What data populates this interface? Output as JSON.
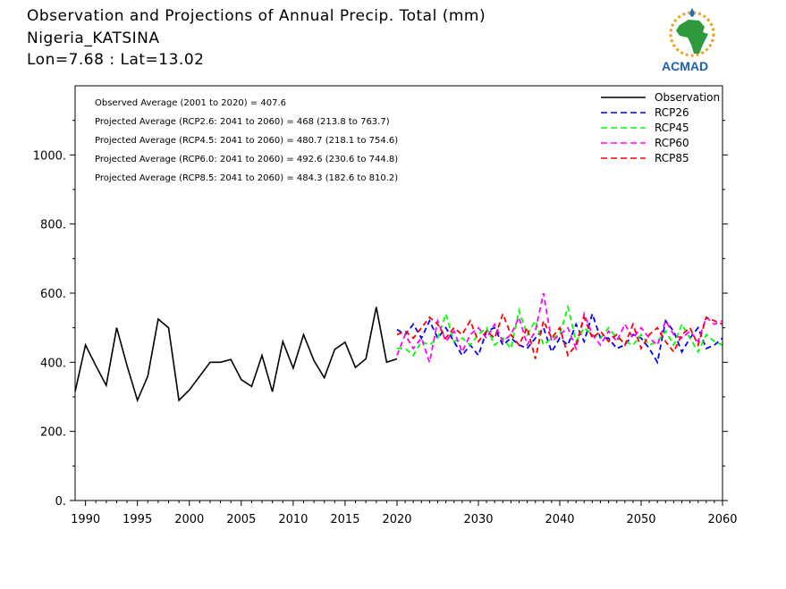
{
  "title": {
    "line1": "Observation and Projections of Annual Precip. Total (mm)",
    "line2": "Nigeria_KATSINA",
    "line3": "Lon=7.68 : Lat=13.02"
  },
  "logo": {
    "text": "ACMAD",
    "icon": "africa-map-logo"
  },
  "colors": {
    "observation": "#000000",
    "rcp26": "#0000ff",
    "rcp45": "#00ff00",
    "rcp60": "#ff00ff",
    "rcp85": "#ff0000"
  },
  "chart_data": {
    "type": "line",
    "title": "Observation and Projections of Annual Precip. Total (mm)",
    "xlim": [
      1989,
      2060
    ],
    "ylim": [
      0,
      1200
    ],
    "grid": false,
    "legend_position": "top-right",
    "x_ticks": [
      1990,
      1995,
      2000,
      2005,
      2010,
      2015,
      2020,
      2030,
      2040,
      2050,
      2060
    ],
    "y_ticks": [
      0,
      200,
      400,
      600,
      800,
      1000
    ],
    "y_tick_labels": [
      "0.",
      "200.",
      "400.",
      "600.",
      "800.",
      "1000."
    ],
    "stats": [
      "Observed Average (2001 to 2020) = 407.6",
      "Projected Average (RCP2.6: 2041 to 2060) = 468 (213.8 to 763.7)",
      "Projected Average (RCP4.5: 2041 to 2060) = 480.7 (218.1 to 754.6)",
      "Projected Average (RCP6.0: 2041 to 2060) = 492.6 (230.6 to 744.8)",
      "Projected Average (RCP8.5: 2041 to 2060) = 484.3 (182.6 to 810.2)"
    ],
    "series": [
      {
        "name": "Observation",
        "style": "solid",
        "colorKey": "observation",
        "x": [
          1989,
          1990,
          1991,
          1992,
          1993,
          1994,
          1995,
          1996,
          1997,
          1998,
          1999,
          2000,
          2001,
          2002,
          2003,
          2004,
          2005,
          2006,
          2007,
          2008,
          2009,
          2010,
          2011,
          2012,
          2013,
          2014,
          2015,
          2016,
          2017,
          2018,
          2019,
          2020
        ],
        "y": [
          315,
          450,
          390,
          333,
          500,
          390,
          290,
          360,
          525,
          500,
          290,
          320,
          360,
          400,
          400,
          408,
          350,
          330,
          420,
          315,
          460,
          383,
          480,
          405,
          355,
          437,
          458,
          385,
          410,
          560,
          400,
          410
        ]
      },
      {
        "name": "RCP26",
        "style": "dashed",
        "colorKey": "rcp26",
        "x": [
          2020,
          2021,
          2022,
          2023,
          2024,
          2025,
          2026,
          2027,
          2028,
          2029,
          2030,
          2031,
          2032,
          2033,
          2034,
          2035,
          2036,
          2037,
          2038,
          2039,
          2040,
          2041,
          2042,
          2043,
          2044,
          2045,
          2046,
          2047,
          2048,
          2049,
          2050,
          2051,
          2052,
          2053,
          2054,
          2055,
          2056,
          2057,
          2058,
          2059,
          2060
        ],
        "y": [
          495,
          480,
          510,
          470,
          520,
          470,
          500,
          460,
          420,
          450,
          420,
          490,
          500,
          450,
          470,
          450,
          440,
          470,
          500,
          430,
          470,
          450,
          510,
          460,
          540,
          470,
          470,
          440,
          450,
          480,
          470,
          440,
          400,
          520,
          490,
          430,
          470,
          500,
          440,
          450,
          470
        ]
      },
      {
        "name": "RCP45",
        "style": "dashed",
        "colorKey": "rcp45",
        "x": [
          2020,
          2021,
          2022,
          2023,
          2024,
          2025,
          2026,
          2027,
          2028,
          2029,
          2030,
          2031,
          2032,
          2033,
          2034,
          2035,
          2036,
          2037,
          2038,
          2039,
          2040,
          2041,
          2042,
          2043,
          2044,
          2045,
          2046,
          2047,
          2048,
          2049,
          2050,
          2051,
          2052,
          2053,
          2054,
          2055,
          2056,
          2057,
          2058,
          2059,
          2060
        ],
        "y": [
          440,
          440,
          420,
          460,
          450,
          470,
          540,
          460,
          470,
          450,
          480,
          500,
          450,
          470,
          440,
          550,
          480,
          520,
          450,
          470,
          480,
          560,
          460,
          500,
          480,
          470,
          500,
          470,
          460,
          450,
          480,
          450,
          460,
          490,
          450,
          510,
          470,
          430,
          480,
          460,
          450
        ]
      },
      {
        "name": "RCP60",
        "style": "dashed",
        "colorKey": "rcp60",
        "x": [
          2020,
          2021,
          2022,
          2023,
          2024,
          2025,
          2026,
          2027,
          2028,
          2029,
          2030,
          2031,
          2032,
          2033,
          2034,
          2035,
          2036,
          2037,
          2038,
          2039,
          2040,
          2041,
          2042,
          2043,
          2044,
          2045,
          2046,
          2047,
          2048,
          2049,
          2050,
          2051,
          2052,
          2053,
          2054,
          2055,
          2056,
          2057,
          2058,
          2059,
          2060
        ],
        "y": [
          420,
          480,
          440,
          470,
          400,
          520,
          460,
          490,
          430,
          480,
          500,
          470,
          510,
          460,
          480,
          530,
          450,
          490,
          600,
          460,
          480,
          500,
          440,
          540,
          480,
          450,
          490,
          460,
          510,
          470,
          500,
          470,
          450,
          520,
          480,
          470,
          490,
          460,
          530,
          510,
          520
        ]
      },
      {
        "name": "RCP85",
        "style": "dashed",
        "colorKey": "rcp85",
        "x": [
          2020,
          2021,
          2022,
          2023,
          2024,
          2025,
          2026,
          2027,
          2028,
          2029,
          2030,
          2031,
          2032,
          2033,
          2034,
          2035,
          2036,
          2037,
          2038,
          2039,
          2040,
          2041,
          2042,
          2043,
          2044,
          2045,
          2046,
          2047,
          2048,
          2049,
          2050,
          2051,
          2052,
          2053,
          2054,
          2055,
          2056,
          2057,
          2058,
          2059,
          2060
        ],
        "y": [
          480,
          490,
          470,
          500,
          530,
          510,
          470,
          500,
          480,
          520,
          460,
          490,
          470,
          540,
          480,
          450,
          500,
          410,
          520,
          470,
          500,
          420,
          450,
          530,
          470,
          490,
          460,
          480,
          450,
          510,
          440,
          480,
          500,
          460,
          430,
          480,
          500,
          450,
          530,
          520,
          510
        ]
      }
    ]
  }
}
